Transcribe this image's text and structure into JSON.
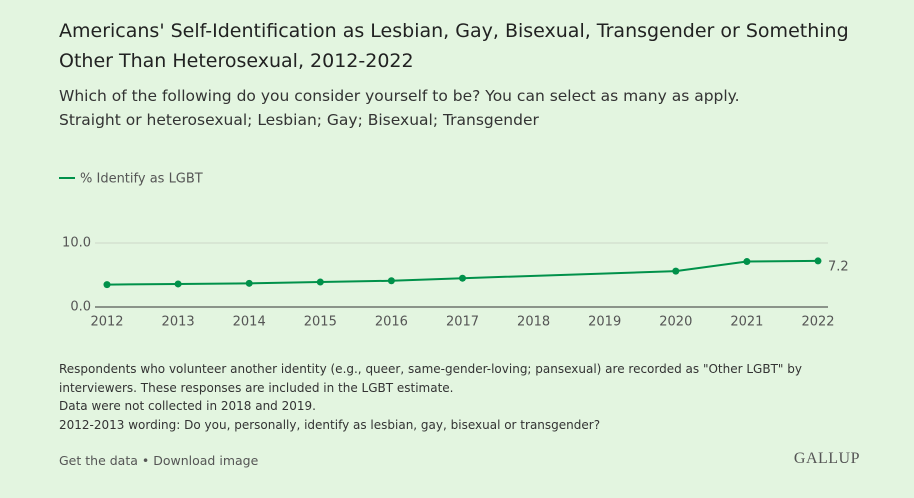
{
  "chart_data": {
    "type": "line",
    "title": "Americans' Self-Identification as Lesbian, Gay, Bisexual, Transgender or Something Other Than Heterosexual, 2012-2022",
    "subtitle": [
      "Which of the following do you consider yourself to be? You can select as many as apply.",
      "Straight or heterosexual; Lesbian; Gay; Bisexual; Transgender"
    ],
    "x": [
      2012,
      2013,
      2014,
      2015,
      2016,
      2017,
      2020,
      2021,
      2022
    ],
    "series": [
      {
        "name": "% Identify as LGBT",
        "color": "#00914a",
        "values": [
          3.5,
          3.6,
          3.7,
          3.9,
          4.1,
          4.5,
          5.6,
          7.1,
          7.2
        ]
      }
    ],
    "xlim": [
      2012,
      2022
    ],
    "xticks": [
      2012,
      2013,
      2014,
      2015,
      2016,
      2017,
      2018,
      2019,
      2020,
      2021,
      2022
    ],
    "ylim": [
      0,
      10
    ],
    "yticks": [
      {
        "value": 0,
        "label": "0.0"
      },
      {
        "value": 10,
        "label": "10.0"
      }
    ],
    "grid": true,
    "notes": [
      "Respondents who volunteer another identity (e.g., queer, same-gender-loving; pansexual) are recorded as \"Other LGBT\" by interviewers. These responses are included in the LGBT estimate.",
      "Data were not collected in 2018 and 2019.",
      "2012-2013 wording: Do you, personally, identify as lesbian, gay, bisexual or transgender?"
    ],
    "footer_links": [
      "Get the data",
      "Download image"
    ],
    "brand": "GALLUP"
  }
}
